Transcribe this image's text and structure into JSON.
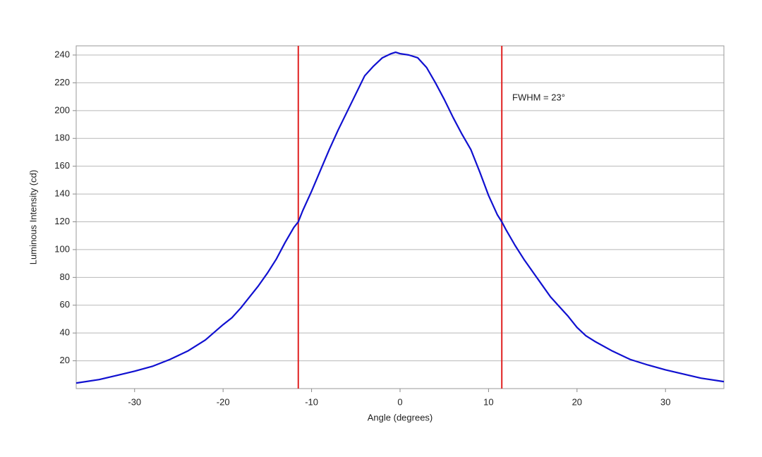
{
  "chart_data": {
    "type": "line",
    "xlabel": "Angle (degrees)",
    "ylabel": "Luminous Intensity (cd)",
    "annotation": "FWHM = 23°",
    "x": [
      -36.6,
      -34,
      -32,
      -30,
      -28,
      -26,
      -24,
      -22,
      -20,
      -19,
      -18,
      -17,
      -16,
      -15,
      -14,
      -13,
      -12,
      -11.5,
      -11,
      -10,
      -9,
      -8,
      -7,
      -6,
      -5,
      -4,
      -3,
      -2,
      -1,
      -0.5,
      0,
      1,
      2,
      3,
      4,
      5,
      6,
      7,
      8,
      9,
      10,
      11,
      11.5,
      12,
      13,
      14,
      15,
      16,
      17,
      18,
      19,
      20,
      21,
      22,
      24,
      26,
      28,
      30,
      32,
      34,
      36.6
    ],
    "series": [
      {
        "name": "Luminous Intensity",
        "color": "#1010d0",
        "values": [
          4,
          6.5,
          9.5,
          12.5,
          16,
          21,
          27,
          35,
          46,
          51,
          58,
          66,
          74,
          83,
          93,
          105,
          116,
          120,
          128,
          142,
          157,
          172,
          186,
          199,
          212,
          225,
          232,
          238,
          241,
          242,
          241,
          240,
          238,
          231,
          220,
          208,
          195,
          183,
          172,
          156,
          139,
          125,
          120,
          114,
          103,
          93,
          84,
          75,
          66,
          59,
          52,
          44,
          38,
          34,
          27,
          21,
          17,
          13.5,
          10.5,
          7.5,
          5
        ]
      }
    ],
    "vlines": [
      -11.5,
      11.5
    ],
    "vline_color": "#e02020",
    "xlim": [
      -36.6,
      36.6
    ],
    "ylim": [
      0,
      246.6
    ],
    "xticks": [
      -30,
      -20,
      -10,
      0,
      10,
      20,
      30
    ],
    "yticks": [
      20,
      40,
      60,
      80,
      100,
      120,
      140,
      160,
      180,
      200,
      220,
      240
    ],
    "grid": true
  }
}
